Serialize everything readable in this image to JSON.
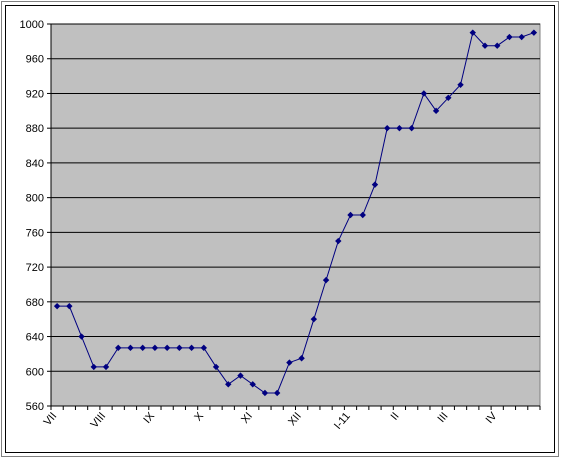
{
  "chart_data": {
    "type": "line",
    "categories": [
      "VII",
      null,
      null,
      null,
      "VIII",
      null,
      null,
      null,
      "IX",
      null,
      null,
      null,
      "X",
      null,
      null,
      null,
      "XI",
      null,
      null,
      null,
      "XII",
      null,
      null,
      null,
      "I-11",
      null,
      null,
      null,
      "II",
      null,
      null,
      null,
      "III",
      null,
      null,
      null,
      "IV",
      null,
      null,
      null
    ],
    "series": [
      {
        "color": "#000080",
        "values": [
          675,
          675,
          640,
          605,
          605,
          627,
          627,
          627,
          627,
          627,
          627,
          627,
          627,
          605,
          585,
          595,
          585,
          575,
          575,
          610,
          615,
          660,
          705,
          750,
          780,
          780,
          815,
          880,
          880,
          880,
          920,
          900,
          915,
          930,
          990,
          975,
          975,
          985,
          985,
          990
        ]
      }
    ],
    "ylim": [
      560,
      1000
    ],
    "yticks": [
      560,
      600,
      640,
      680,
      720,
      760,
      800,
      840,
      880,
      920,
      960,
      1000
    ],
    "grid": true
  }
}
